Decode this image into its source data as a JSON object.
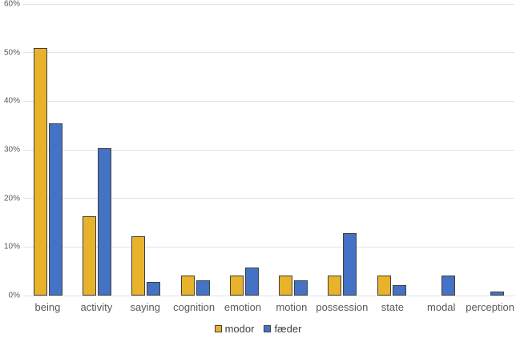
{
  "chart_data": {
    "type": "bar",
    "title": "",
    "xlabel": "",
    "ylabel": "",
    "categories": [
      "being",
      "activity",
      "saying",
      "cognition",
      "emotion",
      "motion",
      "possession",
      "state",
      "modal",
      "perception"
    ],
    "series": [
      {
        "name": "modor",
        "color": "#E8B32A",
        "values": [
          51.0,
          16.4,
          12.2,
          4.2,
          4.2,
          4.2,
          4.2,
          4.2,
          0,
          0
        ]
      },
      {
        "name": "fæder",
        "color": "#4472C4",
        "values": [
          35.5,
          30.4,
          2.8,
          3.2,
          5.8,
          3.2,
          12.8,
          2.2,
          4.1,
          0.8
        ]
      }
    ],
    "ylim": [
      0,
      60
    ],
    "ytick_labels": [
      "0%",
      "10%",
      "20%",
      "30%",
      "40%",
      "50%",
      "60%"
    ],
    "grid": true,
    "legend_position": "bottom",
    "colors": {
      "bar_border": "#404040",
      "gridline": "#E2E2E2",
      "tick_label": "#595959",
      "legend_text": "#404040",
      "background": "#FFFFFF"
    }
  }
}
